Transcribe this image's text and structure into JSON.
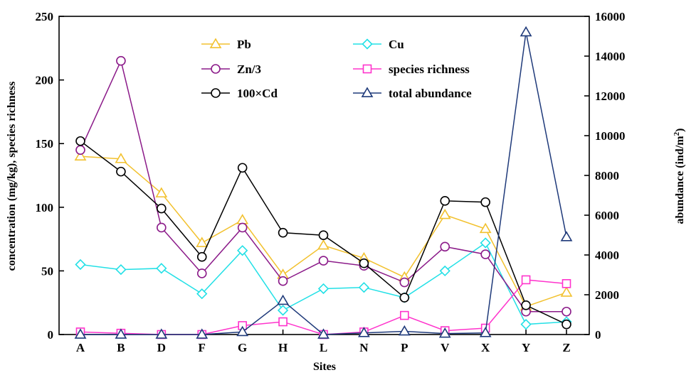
{
  "chart_data": {
    "type": "line",
    "title": "",
    "xlabel": "Sites",
    "ylabel_left": "concentration (mg/kg), species richness",
    "ylabel_right_prefix": "abundance (ind/m",
    "ylabel_right_sup": "2",
    "ylabel_right_suffix": ")",
    "categories": [
      "A",
      "B",
      "D",
      "F",
      "G",
      "H",
      "L",
      "N",
      "P",
      "V",
      "X",
      "Y",
      "Z"
    ],
    "ylim_left": [
      0,
      250
    ],
    "yticks_left": [
      0,
      50,
      100,
      150,
      200,
      250
    ],
    "ylim_right": [
      0,
      16000
    ],
    "yticks_right": [
      0,
      2000,
      4000,
      6000,
      8000,
      10000,
      12000,
      14000,
      16000
    ],
    "grid": false,
    "legend_position": "top-center",
    "series": [
      {
        "name": "Pb",
        "axis": "left",
        "color": "#F2C12E",
        "marker": "triangle",
        "values": [
          140,
          138,
          111,
          72,
          90,
          47,
          70,
          60,
          45,
          94,
          83,
          22,
          33
        ]
      },
      {
        "name": "Cu",
        "axis": "left",
        "color": "#22E0E6",
        "marker": "diamond",
        "values": [
          55,
          51,
          52,
          32,
          66,
          19,
          36,
          37,
          29,
          50,
          72,
          8,
          10
        ]
      },
      {
        "name": "Zn/3",
        "axis": "left",
        "color": "#8B1A89",
        "marker": "circle",
        "values": [
          145,
          215,
          84,
          48,
          84,
          42,
          58,
          54,
          41,
          69,
          63,
          18,
          18
        ]
      },
      {
        "name": "species richness",
        "axis": "left",
        "color": "#FF33CC",
        "marker": "square",
        "values": [
          2,
          1,
          0,
          0,
          7,
          10,
          0,
          2,
          15,
          3,
          5,
          43,
          40
        ]
      },
      {
        "name": "100×Cd",
        "axis": "left",
        "color": "#000000",
        "marker": "circle",
        "values": [
          152,
          128,
          99,
          61,
          131,
          80,
          78,
          56,
          29,
          105,
          104,
          23,
          8
        ]
      },
      {
        "name": "total abundance",
        "axis": "right",
        "color": "#1F3A7A",
        "marker": "triangle",
        "values": [
          0,
          0,
          0,
          0,
          130,
          1700,
          0,
          80,
          160,
          50,
          80,
          15200,
          4900
        ]
      }
    ]
  }
}
